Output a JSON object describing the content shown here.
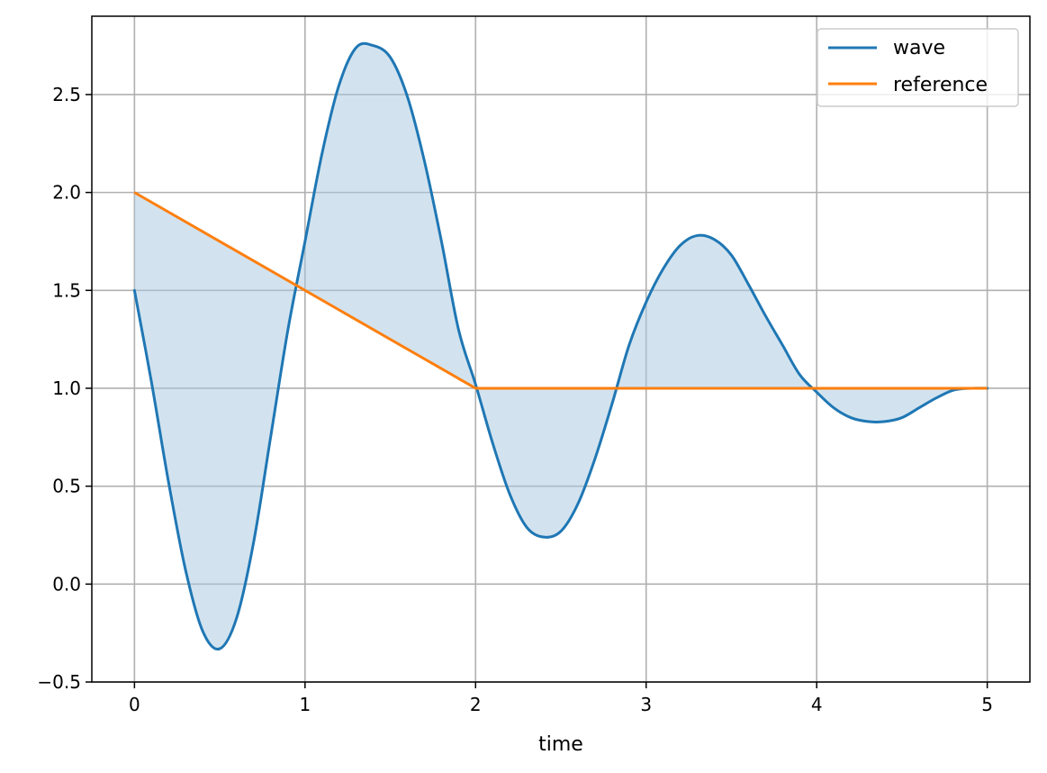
{
  "chart_data": {
    "type": "line",
    "title": "",
    "xlabel": "time",
    "ylabel": "",
    "xlim": [
      -0.25,
      5.25
    ],
    "ylim": [
      -0.5,
      2.9
    ],
    "xticks": [
      0,
      1,
      2,
      3,
      4,
      5
    ],
    "xtick_labels": [
      "0",
      "1",
      "2",
      "3",
      "4",
      "5"
    ],
    "yticks": [
      -0.5,
      0.0,
      0.5,
      1.0,
      1.5,
      2.0,
      2.5
    ],
    "ytick_labels": [
      "−0.5",
      "0.0",
      "0.5",
      "1.0",
      "1.5",
      "2.0",
      "2.5"
    ],
    "grid": true,
    "legend_position": "top-right",
    "fill_between": {
      "series_a": "wave",
      "series_b": "reference",
      "color": "#a6c8e0",
      "alpha": 0.5
    },
    "series": [
      {
        "name": "wave",
        "color": "#1f77b4",
        "x": [
          0,
          0.1,
          0.2,
          0.3,
          0.4,
          0.5,
          0.6,
          0.7,
          0.8,
          0.9,
          1.0,
          1.1,
          1.2,
          1.3,
          1.4,
          1.5,
          1.6,
          1.7,
          1.8,
          1.9,
          2.0,
          2.1,
          2.2,
          2.3,
          2.4,
          2.5,
          2.6,
          2.7,
          2.8,
          2.9,
          3.0,
          3.1,
          3.2,
          3.3,
          3.4,
          3.5,
          3.6,
          3.7,
          3.8,
          3.9,
          4.0,
          4.1,
          4.2,
          4.3,
          4.4,
          4.5,
          4.6,
          4.7,
          4.8,
          4.9,
          5.0
        ],
        "y": [
          1.5,
          1.03,
          0.52,
          0.07,
          -0.24,
          -0.33,
          -0.17,
          0.22,
          0.76,
          1.3,
          1.75,
          2.2,
          2.55,
          2.74,
          2.75,
          2.69,
          2.49,
          2.16,
          1.75,
          1.3,
          1.02,
          0.72,
          0.46,
          0.29,
          0.24,
          0.27,
          0.41,
          0.64,
          0.92,
          1.22,
          1.44,
          1.61,
          1.73,
          1.78,
          1.76,
          1.68,
          1.53,
          1.37,
          1.22,
          1.07,
          0.98,
          0.9,
          0.85,
          0.83,
          0.83,
          0.85,
          0.9,
          0.95,
          0.99,
          1.0,
          1.0
        ]
      },
      {
        "name": "reference",
        "color": "#ff7f0e",
        "x": [
          0,
          2,
          5
        ],
        "y": [
          2.0,
          1.0,
          1.0
        ]
      }
    ]
  }
}
